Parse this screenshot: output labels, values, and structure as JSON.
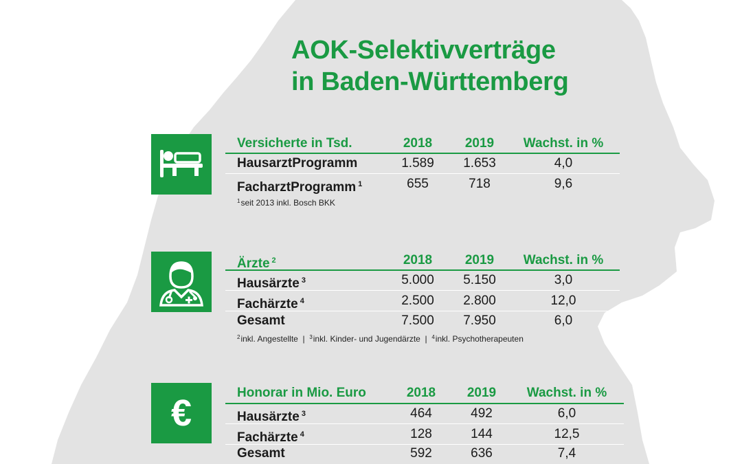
{
  "title": {
    "line1": "AOK-Selektivverträge",
    "line2": "in Baden-Württemberg"
  },
  "colors": {
    "accent": "#1a9a43",
    "map": "#e3e3e3",
    "background": "#ffffff"
  },
  "icons": [
    "patient-bed-icon",
    "doctor-icon",
    "euro-icon"
  ],
  "versicherte": {
    "header": {
      "label": "Versicherte in Tsd.",
      "y2018": "2018",
      "y2019": "2019",
      "growth": "Wachst. in %"
    },
    "rows": [
      {
        "label": "HausarztProgramm",
        "sup": "",
        "v2018": "1.589",
        "v2019": "1.653",
        "growth": "4,0"
      },
      {
        "label": "FacharztProgramm",
        "sup": "1",
        "v2018": "655",
        "v2019": "718",
        "growth": "9,6"
      }
    ],
    "footnote": {
      "sup": "1",
      "text": "seit 2013 inkl. Bosch BKK"
    }
  },
  "aerzte": {
    "header": {
      "label": "Ärzte",
      "sup": "2",
      "y2018": "2018",
      "y2019": "2019",
      "growth": "Wachst. in %"
    },
    "rows": [
      {
        "label": "Hausärzte",
        "sup": "3",
        "v2018": "5.000",
        "v2019": "5.150",
        "growth": "3,0"
      },
      {
        "label": "Fachärzte",
        "sup": "4",
        "v2018": "2.500",
        "v2019": "2.800",
        "growth": "12,0"
      },
      {
        "label": "Gesamt",
        "sup": "",
        "v2018": "7.500",
        "v2019": "7.950",
        "growth": "6,0"
      }
    ],
    "footnotes": [
      {
        "sup": "2",
        "text": "inkl. Angestellte"
      },
      {
        "sup": "3",
        "text": "inkl. Kinder- und Jugendärzte"
      },
      {
        "sup": "4",
        "text": "inkl. Psychotherapeuten"
      }
    ],
    "separator": "|"
  },
  "honorar": {
    "header": {
      "label": "Honorar in Mio. Euro",
      "y2018": "2018",
      "y2019": "2019",
      "growth": "Wachst. in %"
    },
    "rows": [
      {
        "label": "Hausärzte",
        "sup": "3",
        "v2018": "464",
        "v2019": "492",
        "growth": "6,0"
      },
      {
        "label": "Fachärzte",
        "sup": "4",
        "v2018": "128",
        "v2019": "144",
        "growth": "12,5"
      },
      {
        "label": "Gesamt",
        "sup": "",
        "v2018": "592",
        "v2019": "636",
        "growth": "7,4"
      }
    ]
  }
}
